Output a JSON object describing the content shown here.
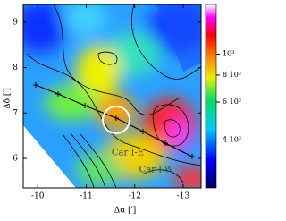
{
  "chart_data": {
    "type": "image",
    "xlabel": "Δα [′]",
    "ylabel": "Δδ [′]",
    "xlim": [
      -9.7,
      -13.37
    ],
    "xticks": [
      -10,
      -11,
      -12,
      -13
    ],
    "ylim": [
      5.35,
      9.39
    ],
    "yticks": [
      6,
      7,
      8,
      9
    ],
    "clim": [
      240,
      1700
    ],
    "clog": true,
    "cticks": [
      {
        "value": 1000,
        "label": "10³"
      },
      {
        "value": 800,
        "label": "8 10²"
      },
      {
        "value": 600,
        "label": "6 10²"
      },
      {
        "value": 400,
        "label": "4 10²"
      }
    ],
    "annotations": [
      "Car I-E",
      "Car I-W"
    ]
  }
}
